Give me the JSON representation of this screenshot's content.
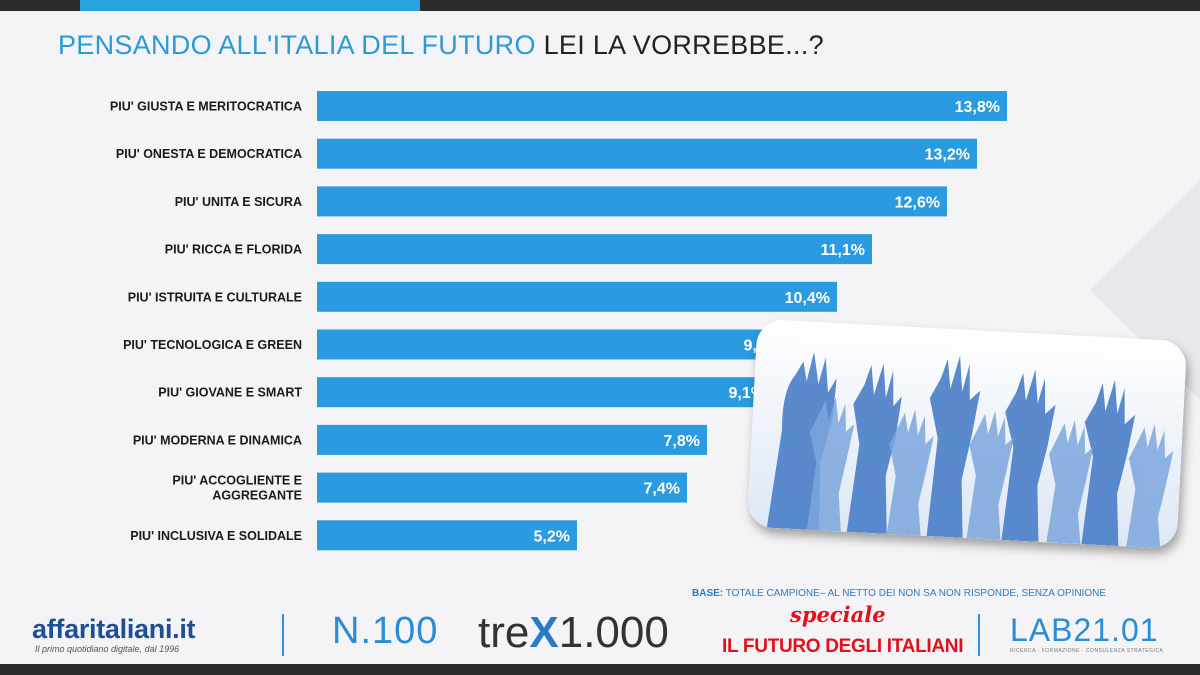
{
  "title": {
    "part1": "PENSANDO ALL'ITALIA DEL FUTURO",
    "part2": "LEI LA VORREBBE...?"
  },
  "colors": {
    "bar": "#2a9be0",
    "title_accent": "#2a9bd6",
    "label_text": "#1a1a1a"
  },
  "chart_data": {
    "type": "bar",
    "orientation": "horizontal",
    "title": "PENSANDO ALL'ITALIA DEL FUTURO LEI LA VORREBBE...?",
    "categories": [
      [
        "PIU' GIUSTA E MERITOCRATICA"
      ],
      [
        "PIU' ONESTA E DEMOCRATICA"
      ],
      [
        "PIU' UNITA E SICURA"
      ],
      [
        "PIU' RICCA E FLORIDA"
      ],
      [
        "PIU' ISTRUITA E CULTURALE"
      ],
      [
        "PIU' TECNOLOGICA E GREEN"
      ],
      [
        "PIU' GIOVANE E SMART"
      ],
      [
        "PIU' MODERNA E DINAMICA"
      ],
      [
        "PIU' ACCOGLIENTE E",
        "AGGREGANTE"
      ],
      [
        "PIU' INCLUSIVA E SOLIDALE"
      ]
    ],
    "values": [
      13.8,
      13.2,
      12.6,
      11.1,
      10.4,
      9.4,
      9.1,
      7.8,
      7.4,
      5.2
    ],
    "value_labels": [
      "13,8%",
      "13,2%",
      "12,6%",
      "11,1%",
      "10,4%",
      "9,4%",
      "9,1%",
      "7,8%",
      "7,4%",
      "5,2%"
    ],
    "unit": "%",
    "xlim": [
      0,
      14
    ],
    "grid": false,
    "legend": "none"
  },
  "base_note": {
    "label": "BASE:",
    "text": "TOTALE CAMPIONE– AL NETTO DEI NON SA NON RISPONDE, SENZA OPINIONE"
  },
  "logos": {
    "affaritaliani": "affaritaliani.it",
    "affaritaliani_tagline": "Il primo quotidiano digitale, dal 1996",
    "n100": "N.100",
    "trex_pre": "tre",
    "trex_x": "X",
    "trex_post": "1.000",
    "speciale": "speciale",
    "futuro": "IL FUTURO DEGLI ITALIANI",
    "lab": "LAB21.01",
    "lab_tagline": "RICERCA · FORMAZIONE · CONSULENZA STRATEGICA"
  }
}
